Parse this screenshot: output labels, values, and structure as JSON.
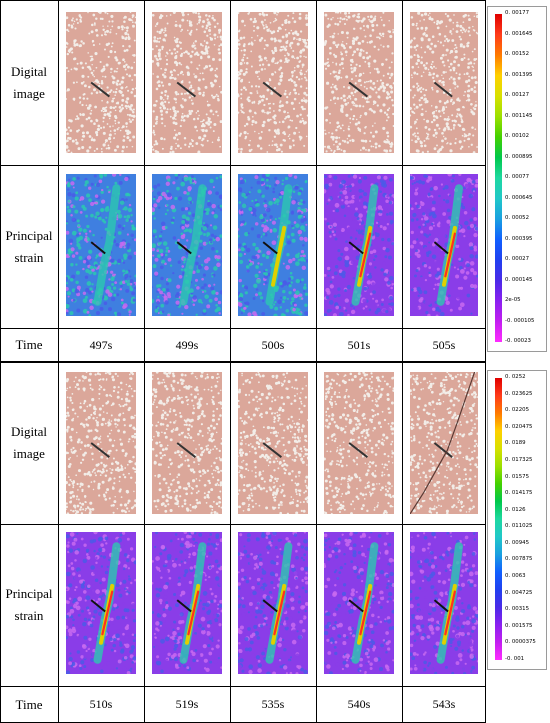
{
  "row_labels": {
    "digital_image": "Digital image",
    "principal_strain": "Principal strain",
    "time": "Time"
  },
  "top_panel": {
    "times": [
      "497s",
      "499s",
      "500s",
      "501s",
      "505s"
    ],
    "colorbar": {
      "ticks": [
        "0. 00177",
        "0. 001645",
        "0. 00152",
        "0. 001395",
        "0. 00127",
        "0. 001145",
        "0. 00102",
        "0. 000895",
        "0. 00077",
        "0. 000645",
        "0. 00052",
        "0. 000395",
        "0. 00027",
        "0. 000145",
        "2e-05",
        "-0. 000105",
        "-0. 00023"
      ],
      "colors": [
        "#e00000",
        "#ff3b1a",
        "#ff7a00",
        "#ffd000",
        "#d8e000",
        "#9ce000",
        "#44d100",
        "#00c84b",
        "#1ed8a0",
        "#20c8c8",
        "#1aa0e0",
        "#1060ff",
        "#2040f0",
        "#4a2ae8",
        "#8a20f0",
        "#c21ef0",
        "#ff2bff"
      ]
    }
  },
  "bottom_panel": {
    "times": [
      "510s",
      "519s",
      "535s",
      "540s",
      "543s"
    ],
    "colorbar": {
      "ticks": [
        "0. 0252",
        "0. 023625",
        "0. 02205",
        "0. 020475",
        "0. 0189",
        "0. 017325",
        "0. 01575",
        "0. 014175",
        "0. 0126",
        "0. 011025",
        "0. 00945",
        "0. 007875",
        "0. 0063",
        "0. 004725",
        "0. 00315",
        "0. 001575",
        "0. 0000375",
        "-0. 001"
      ],
      "colors": [
        "#e00000",
        "#ff3b1a",
        "#ff7a00",
        "#ffd000",
        "#d8e000",
        "#9ce000",
        "#44d100",
        "#00c84b",
        "#1ed8a0",
        "#20c8c8",
        "#1aa0e0",
        "#1060ff",
        "#2040f0",
        "#4a2ae8",
        "#8a20f0",
        "#c21ef0",
        "#ff2bff"
      ]
    }
  },
  "image_colors": {
    "rock": "#dba79a",
    "grain": "#f2ede8",
    "flaw": "#333333",
    "strain_low": "#8a3de8",
    "strain_mid": "#2cc8b0",
    "strain_high": "#ff3020"
  }
}
